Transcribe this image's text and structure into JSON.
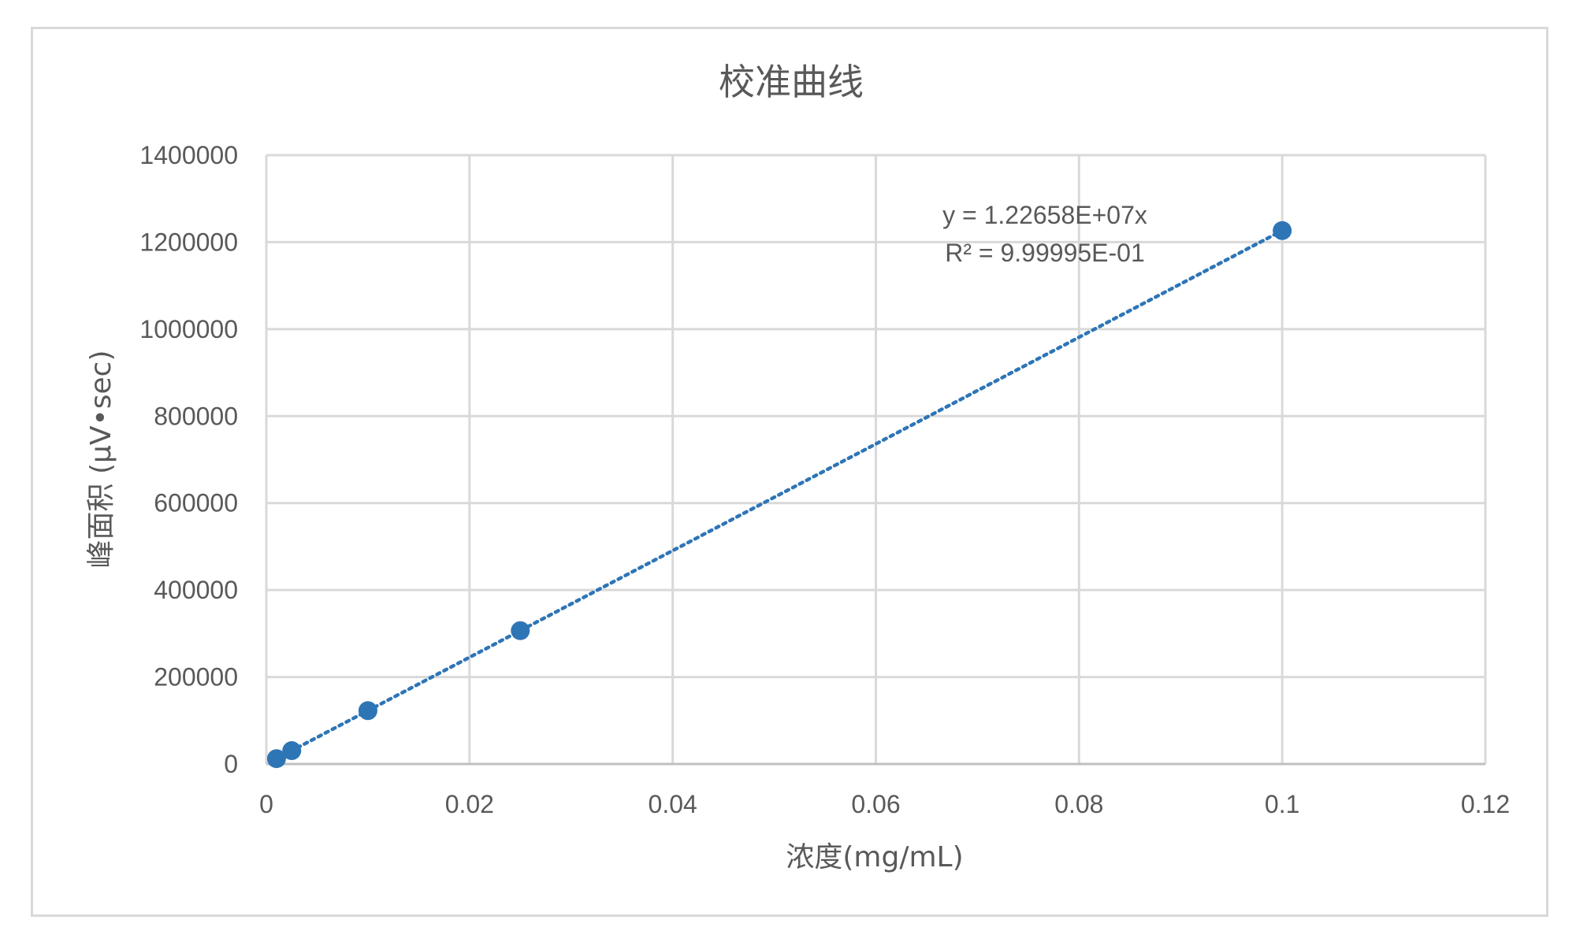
{
  "chart_data": {
    "type": "scatter",
    "title": "校准曲线",
    "xlabel": "浓度(mg/mL)",
    "ylabel": "峰面积 (μV•sec)",
    "xlim": [
      0,
      0.12
    ],
    "ylim": [
      0,
      1400000
    ],
    "x_ticks": [
      0,
      0.02,
      0.04,
      0.06,
      0.08,
      0.1,
      0.12
    ],
    "x_tick_labels": [
      "0",
      "0.02",
      "0.04",
      "0.06",
      "0.08",
      "0.1",
      "0.12"
    ],
    "y_ticks": [
      0,
      200000,
      400000,
      600000,
      800000,
      1000000,
      1200000,
      1400000
    ],
    "y_tick_labels": [
      "0",
      "200000",
      "400000",
      "600000",
      "800000",
      "1000000",
      "1200000",
      "1400000"
    ],
    "grid": true,
    "legend": "none",
    "series": [
      {
        "x": [
          0.001,
          0.0025,
          0.01,
          0.025,
          0.1
        ],
        "y": [
          12300,
          30700,
          122700,
          306600,
          1226500
        ],
        "color": "#2e75b6"
      }
    ],
    "trendline": {
      "slope": 12265800,
      "intercept": 0,
      "x_range": [
        0.001,
        0.1
      ],
      "style": "dotted",
      "color": "#2e75b6"
    },
    "annotations": {
      "equation": "y = 1.22658E+07x",
      "r_squared": "R² = 9.99995E-01"
    }
  }
}
